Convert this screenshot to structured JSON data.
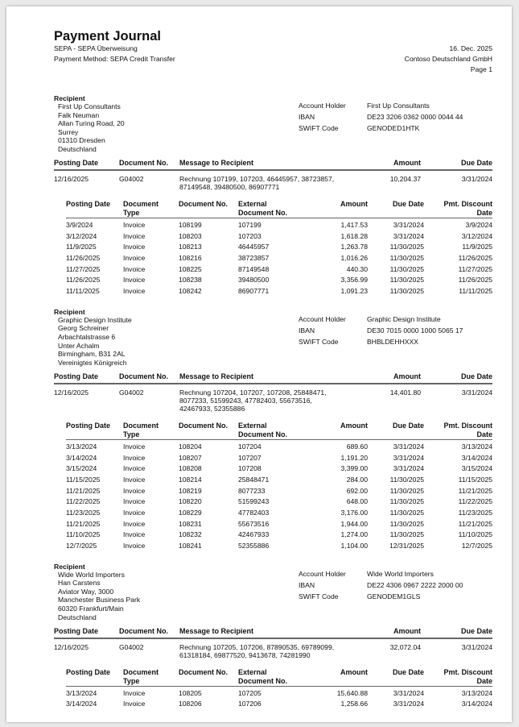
{
  "header": {
    "title": "Payment Journal",
    "subtitle": "SEPA - SEPA Überweisung",
    "payment_method": "Payment Method: SEPA Credit Transfer",
    "date": "16. Dec. 2025",
    "company": "Contoso Deutschland GmbH",
    "page": "Page 1"
  },
  "labels": {
    "recipient": "Recipient",
    "account_holder": "Account Holder",
    "iban": "IBAN",
    "swift": "SWIFT Code",
    "main_cols": [
      "Posting Date",
      "Document No.",
      "Message to Recipient",
      "Amount",
      "Due Date"
    ],
    "sub_cols": [
      "Posting Date",
      "Document\nType",
      "Document No.",
      "External\nDocument No.",
      "Amount",
      "Due Date",
      "Pmt. Discount\nDate"
    ]
  },
  "recipients": [
    {
      "address": [
        "First Up Consultants",
        "Falk Neuman",
        "Allan Turing Road, 20",
        "Surrey",
        "01310 Dresden",
        "Deutschland"
      ],
      "account_holder": "First Up Consultants",
      "iban": "DE23 3206 0362 0000 0044 44",
      "swift": "GENODED1HTK",
      "payment": {
        "posting_date": "12/16/2025",
        "document_no": "G04002",
        "message": [
          "Rechnung 107199, 107203, 46445957, 38723857,",
          "87149548, 39480500, 86907771"
        ],
        "amount": "10,204.37",
        "due_date": "3/31/2024"
      },
      "entries": [
        [
          "3/9/2024",
          "Invoice",
          "108199",
          "107199",
          "1,417.53",
          "3/31/2024",
          "3/9/2024"
        ],
        [
          "3/12/2024",
          "Invoice",
          "108203",
          "107203",
          "1,618.28",
          "3/31/2024",
          "3/12/2024"
        ],
        [
          "11/9/2025",
          "Invoice",
          "108213",
          "46445957",
          "1,263.78",
          "11/30/2025",
          "11/9/2025"
        ],
        [
          "11/26/2025",
          "Invoice",
          "108216",
          "38723857",
          "1,016.26",
          "11/30/2025",
          "11/26/2025"
        ],
        [
          "11/27/2025",
          "Invoice",
          "108225",
          "87149548",
          "440.30",
          "11/30/2025",
          "11/27/2025"
        ],
        [
          "11/26/2025",
          "Invoice",
          "108238",
          "39480500",
          "3,356.99",
          "11/30/2025",
          "11/26/2025"
        ],
        [
          "11/11/2025",
          "Invoice",
          "108242",
          "86907771",
          "1,091.23",
          "11/30/2025",
          "11/11/2025"
        ]
      ]
    },
    {
      "address": [
        "Graphic Design Institute",
        "Georg Schreiner",
        "Arbachtalstrasse 6",
        "Unter Achalm",
        "Birmingham, B31 2AL",
        "Vereinigtes Königreich"
      ],
      "account_holder": "Graphic Design Institute",
      "iban": "DE30 7015 0000 1000 5065 17",
      "swift": "BHBLDEHHXXX",
      "payment": {
        "posting_date": "12/16/2025",
        "document_no": "G04002",
        "message": [
          "Rechnung 107204, 107207, 107208, 25848471,",
          "8077233, 51599243, 47782403, 55673516,",
          "42467933, 52355886"
        ],
        "amount": "14,401.80",
        "due_date": "3/31/2024"
      },
      "entries": [
        [
          "3/13/2024",
          "Invoice",
          "108204",
          "107204",
          "689.60",
          "3/31/2024",
          "3/13/2024"
        ],
        [
          "3/14/2024",
          "Invoice",
          "108207",
          "107207",
          "1,191.20",
          "3/31/2024",
          "3/14/2024"
        ],
        [
          "3/15/2024",
          "Invoice",
          "108208",
          "107208",
          "3,399.00",
          "3/31/2024",
          "3/15/2024"
        ],
        [
          "11/15/2025",
          "Invoice",
          "108214",
          "25848471",
          "284.00",
          "11/30/2025",
          "11/15/2025"
        ],
        [
          "11/21/2025",
          "Invoice",
          "108219",
          "8077233",
          "692.00",
          "11/30/2025",
          "11/21/2025"
        ],
        [
          "11/22/2025",
          "Invoice",
          "108220",
          "51599243",
          "648.00",
          "11/30/2025",
          "11/22/2025"
        ],
        [
          "11/23/2025",
          "Invoice",
          "108229",
          "47782403",
          "3,176.00",
          "11/30/2025",
          "11/23/2025"
        ],
        [
          "11/21/2025",
          "Invoice",
          "108231",
          "55673516",
          "1,944.00",
          "11/30/2025",
          "11/21/2025"
        ],
        [
          "11/10/2025",
          "Invoice",
          "108232",
          "42467933",
          "1,274.00",
          "11/30/2025",
          "11/10/2025"
        ],
        [
          "12/7/2025",
          "Invoice",
          "108241",
          "52355886",
          "1,104.00",
          "12/31/2025",
          "12/7/2025"
        ]
      ]
    },
    {
      "address": [
        "Wide World Importers",
        "Han Carstens",
        "Aviator Way, 3000",
        "Manchester Business Park",
        "60320 Frankfurt/Main",
        "Deutschland"
      ],
      "account_holder": "Wide World Importers",
      "iban": "DE22 4306 0967 2222 2000 00",
      "swift": "GENODEM1GLS",
      "payment": {
        "posting_date": "12/16/2025",
        "document_no": "G04002",
        "message": [
          "Rechnung 107205, 107206, 87890535, 69789099,",
          "61318184, 69877520, 9413678, 74281990"
        ],
        "amount": "32,072.04",
        "due_date": "3/31/2024"
      },
      "entries": [
        [
          "3/13/2024",
          "Invoice",
          "108205",
          "107205",
          "15,640.88",
          "3/31/2024",
          "3/13/2024"
        ],
        [
          "3/14/2024",
          "Invoice",
          "108206",
          "107206",
          "1,258.66",
          "3/31/2024",
          "3/14/2024"
        ]
      ]
    }
  ]
}
